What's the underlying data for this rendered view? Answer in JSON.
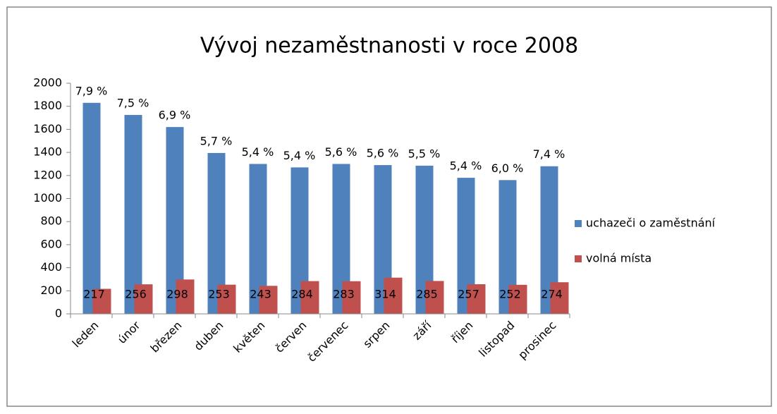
{
  "chart_data": {
    "type": "bar",
    "title": "Vývoj nezaměstnanosti v roce 2008",
    "categories": [
      "leden",
      "únor",
      "březen",
      "duben",
      "květen",
      "červen",
      "červenec",
      "srpen",
      "září",
      "říjen",
      "listopad",
      "prosinec"
    ],
    "series": [
      {
        "name": "uchazeči o zaměstnání",
        "color": "#4f81bd",
        "values": [
          1830,
          1725,
          1620,
          1395,
          1300,
          1270,
          1300,
          1290,
          1285,
          1180,
          1160,
          1280
        ],
        "rate_labels": [
          "7,9 %",
          "7,5 %",
          "6,9 %",
          "5,7 %",
          "5,4 %",
          "5,4 %",
          "5,6 %",
          "5,6 %",
          "5,5 %",
          "5,4 %",
          "6,0 %",
          "7,4 %"
        ]
      },
      {
        "name": "volná místa",
        "color": "#c0504d",
        "values": [
          217,
          256,
          298,
          253,
          243,
          284,
          283,
          314,
          285,
          257,
          252,
          274
        ]
      }
    ],
    "ylim": [
      0,
      2000
    ],
    "yticks": [
      0,
      200,
      400,
      600,
      800,
      1000,
      1200,
      1400,
      1600,
      1800,
      2000
    ],
    "grid": false,
    "legend": "right"
  }
}
